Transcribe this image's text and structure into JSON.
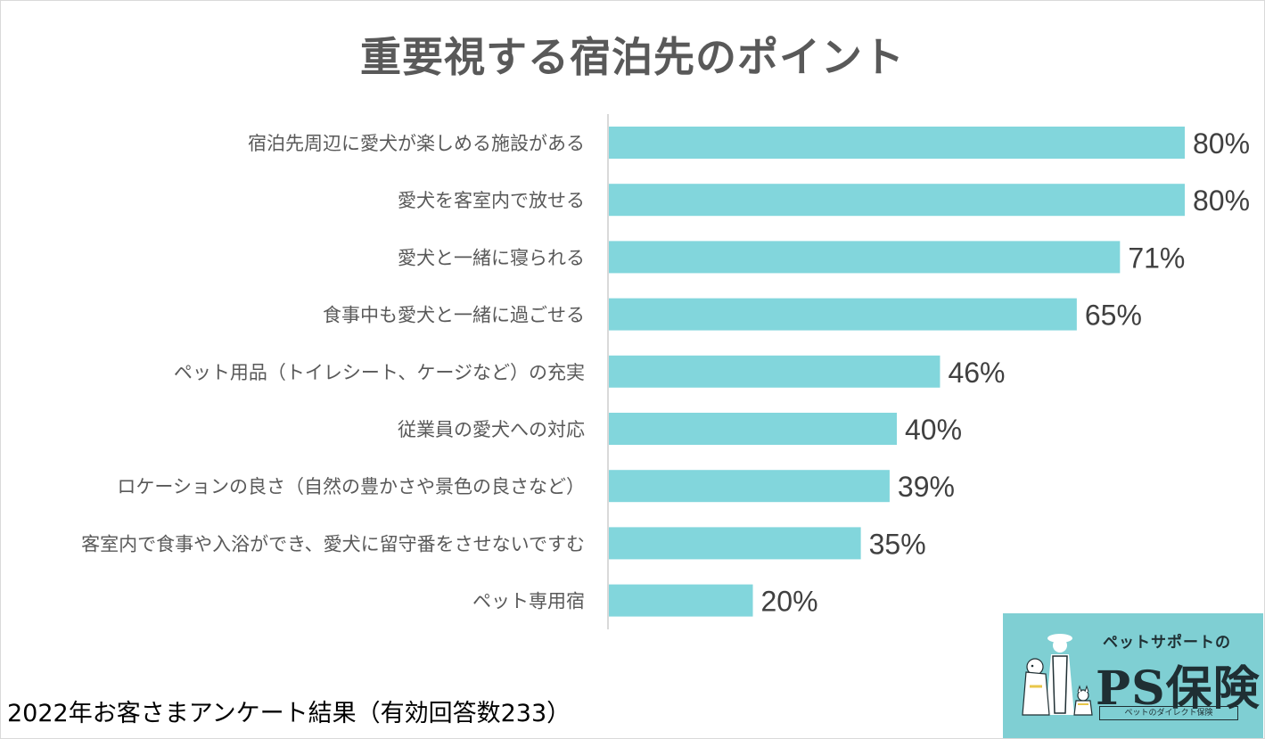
{
  "title": "重要視する宿泊先のポイント",
  "footnote": "2022年お客さまアンケート結果（有効回答数233）",
  "logo": {
    "subtitle": "ペットサポートの",
    "name": "PS保険",
    "tagline": "ペットのダイレクト保険"
  },
  "colors": {
    "bar": "#82d6dc",
    "axis": "#d9d9d9",
    "category_text": "#595959",
    "value_text": "#404040",
    "title_text": "#595959"
  },
  "chart_data": {
    "type": "bar",
    "orientation": "horizontal",
    "title": "重要視する宿泊先のポイント",
    "categories": [
      "宿泊先周辺に愛犬が楽しめる施設がある",
      "愛犬を客室内で放せる",
      "愛犬と一緒に寝られる",
      "食事中も愛犬と一緒に過ごせる",
      "ペット用品（トイレシート、ケージなど）の充実",
      "従業員の愛犬への対応",
      "ロケーションの良さ（自然の豊かさや景色の良さなど）",
      "客室内で食事や入浴ができ、愛犬に留守番をさせないですむ",
      "ペット専用宿"
    ],
    "values": [
      80,
      80,
      71,
      65,
      46,
      40,
      39,
      35,
      20
    ],
    "labels": [
      "80%",
      "80%",
      "71%",
      "65%",
      "46%",
      "40%",
      "39%",
      "35%",
      "20%"
    ],
    "unit": "%",
    "xlim": [
      0,
      100
    ],
    "grid": false,
    "legend": "none",
    "data_labels": true
  }
}
